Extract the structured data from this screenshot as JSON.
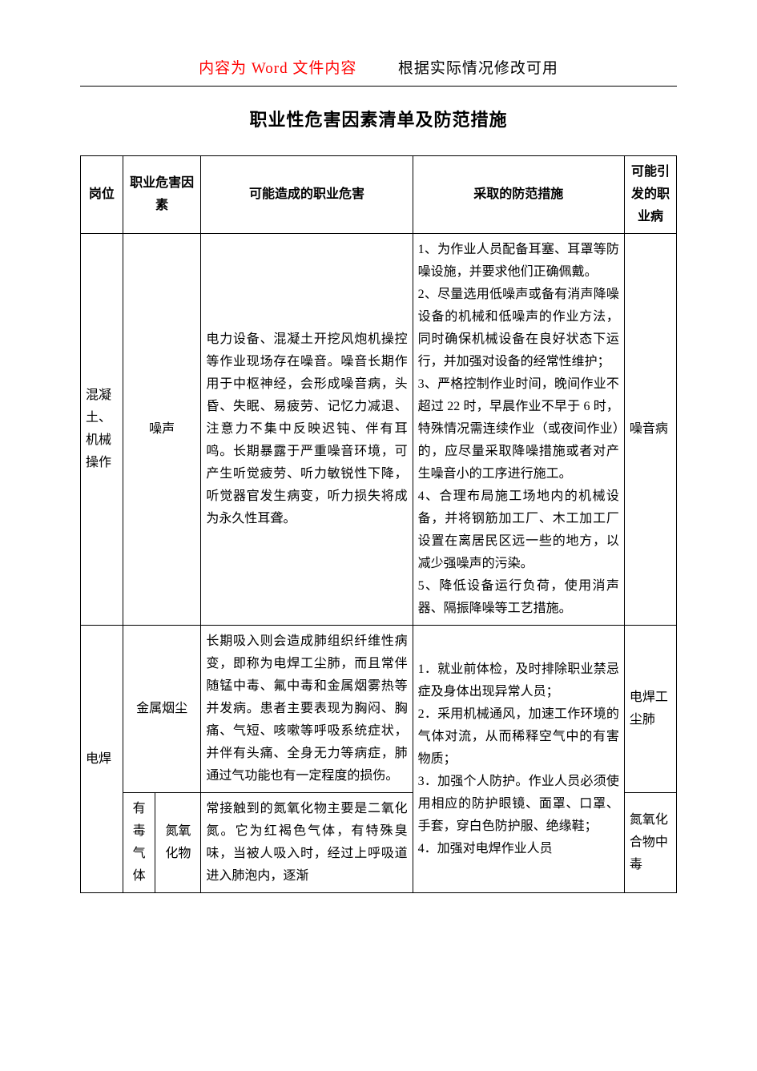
{
  "colors": {
    "red": "#ff0000",
    "black": "#000000",
    "bg": "#ffffff"
  },
  "header": {
    "left_cn1": "内容为",
    "left_en": " Word ",
    "left_cn2": "文件内容",
    "right": "根据实际情况修改可用"
  },
  "title": "职业性危害因素清单及防范措施",
  "columns": {
    "position": "岗位",
    "factor": "职业危害因素",
    "harm": "可能造成的职业危害",
    "measure": "采取的防范措施",
    "disease": "可能引发的职业病"
  },
  "col_widths_pct": [
    6.5,
    5,
    7,
    32.5,
    32.5,
    8
  ],
  "rows": [
    {
      "position": "混凝土、机械操作",
      "factor_full": "噪声",
      "harm": "电力设备、混凝土开挖风炮机操控等作业现场存在噪音。噪音长期作用于中枢神经，会形成噪音病，头昏、失眠、易疲劳、记忆力减退、注意力不集中反映迟钝、伴有耳鸣。长期暴露于严重噪音环境，可产生听觉疲劳、听力敏锐性下降，听觉器官发生病变，听力损失将成为永久性耳聋。",
      "measure": "1、为作业人员配备耳塞、耳罩等防噪设施，并要求他们正确佩戴。\n2、尽量选用低噪声或备有消声降噪设备的机械和低噪声的作业方法，同时确保机械设备在良好状态下运行，并加强对设备的经常性维护；\n3、严格控制作业时间，晚间作业不超过 22 时，早晨作业不早于 6 时，特殊情况需连续作业（或夜间作业）的，应尽量采取降噪措施或者对产生噪音小的工序进行施工。\n4、合理布局施工场地内的机械设备，并将钢筋加工厂、木工加工厂设置在离居民区远一些的地方，以减少强噪声的污染。\n5、降低设备运行负荷，使用消声器、隔振降噪等工艺措施。",
      "disease": "噪音病"
    },
    {
      "position": "电焊",
      "sub": [
        {
          "factor_full": "金属烟尘",
          "harm": "长期吸入则会造成肺组织纤维性病变，即称为电焊工尘肺，而且常伴随锰中毒、氟中毒和金属烟雾热等并发病。患者主要表现为胸闷、胸痛、气短、咳嗽等呼吸系统症状，并伴有头痛、全身无力等病症，肺通过气功能也有一定程度的损伤。",
          "disease": "电焊工尘肺"
        },
        {
          "factor_group": "有毒气体",
          "factor_sub": "氮氧化物",
          "harm": "常接触到的氮氧化物主要是二氧化氮。它为红褐色气体，有特殊臭味，当被人吸入时，经过上呼吸道进入肺泡内，逐渐",
          "disease": "氮氧化合物中毒"
        }
      ],
      "measure_shared": "1．就业前体检，及时排除职业禁忌症及身体出现异常人员；\n2．采用机械通风，加速工作环境的气体对流，从而稀释空气中的有害物质；\n3．加强个人防护。作业人员必须使用相应的防护眼镜、面罩、口罩、手套，穿白色防护服、绝缘鞋；\n4．加强对电焊作业人员"
    }
  ]
}
